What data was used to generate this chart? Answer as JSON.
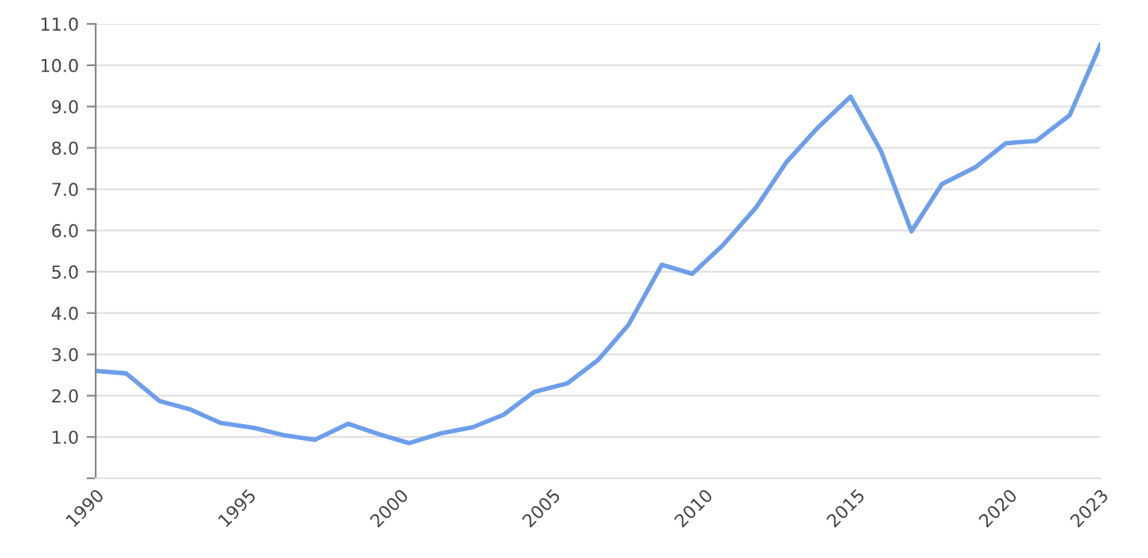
{
  "chart_data": {
    "type": "line",
    "x": [
      1990.0,
      1991.0,
      1992.1,
      1993.1,
      1994.1,
      1995.2,
      1996.2,
      1997.2,
      1998.3,
      1999.3,
      2000.3,
      2001.3,
      2002.4,
      2003.4,
      2004.4,
      2005.5,
      2006.5,
      2007.5,
      2008.6,
      2009.6,
      2010.6,
      2011.7,
      2012.7,
      2013.7,
      2014.8,
      2015.8,
      2016.8,
      2017.8,
      2018.9,
      2019.9,
      2020.9,
      2022.0,
      2023.0
    ],
    "series": [
      {
        "color": "#6d9eeb",
        "values": [
          2.6,
          2.54,
          1.87,
          1.67,
          1.34,
          1.22,
          1.04,
          0.93,
          1.32,
          1.07,
          0.85,
          1.08,
          1.24,
          1.54,
          2.09,
          2.3,
          2.86,
          3.71,
          5.17,
          4.95,
          5.64,
          6.56,
          7.66,
          8.47,
          9.24,
          7.92,
          5.98,
          7.12,
          7.53,
          8.11,
          8.17,
          8.79,
          10.49
        ]
      }
    ],
    "xlim": [
      1990,
      2023
    ],
    "xticks": [
      1990,
      1995,
      2000,
      2005,
      2010,
      2015,
      2020,
      2023
    ],
    "ylim": [
      0,
      11
    ],
    "yticks": [
      {
        "value": 0,
        "label": null
      },
      {
        "value": 1,
        "label": "1.0"
      },
      {
        "value": 2,
        "label": "2.0"
      },
      {
        "value": 3,
        "label": "3.0"
      },
      {
        "value": 4,
        "label": "4.0"
      },
      {
        "value": 5,
        "label": "5.0"
      },
      {
        "value": 6,
        "label": "6.0"
      },
      {
        "value": 7,
        "label": "7.0"
      },
      {
        "value": 8,
        "label": "8.0"
      },
      {
        "value": 9,
        "label": "9.0"
      },
      {
        "value": 10,
        "label": "10.0"
      },
      {
        "value": 11,
        "label": "11.0"
      }
    ],
    "grid": "y",
    "legend": false,
    "marker": "none",
    "line_style": "solid"
  }
}
